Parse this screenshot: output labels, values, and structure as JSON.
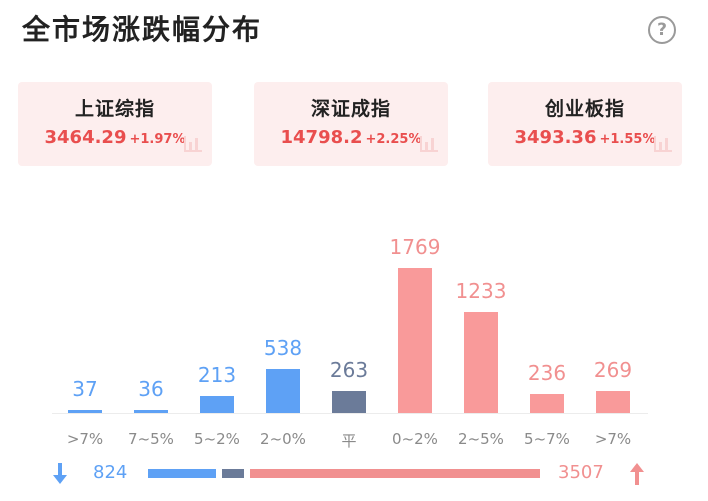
{
  "title": "全市场涨跌幅分布",
  "help_icon": "?",
  "indices": [
    {
      "name": "上证综指",
      "price": "3464.29",
      "change": "+1.97%"
    },
    {
      "name": "深证成指",
      "price": "14798.2",
      "change": "+2.25%"
    },
    {
      "name": "创业板指",
      "price": "3493.36",
      "change": "+1.55%"
    }
  ],
  "chart_data": {
    "type": "bar",
    "categories": [
      ">7%",
      "7~5%",
      "5~2%",
      "2~0%",
      "平",
      "0~2%",
      "2~5%",
      "5~7%",
      ">7%"
    ],
    "values": [
      37,
      36,
      213,
      538,
      263,
      1769,
      1233,
      236,
      269
    ],
    "label_colors": [
      "#5ea1f5",
      "#5ea1f5",
      "#5ea1f5",
      "#5ea1f5",
      "#6b7b99",
      "#f19090",
      "#f19090",
      "#f19090",
      "#f19090"
    ],
    "bar_colors": [
      "#5ea1f5",
      "#5ea1f5",
      "#5ea1f5",
      "#5ea1f5",
      "#6b7b99",
      "#f99a9a",
      "#f99a9a",
      "#f99a9a",
      "#f99a9a"
    ]
  },
  "summary": {
    "down_count": "824",
    "flat_count": 263,
    "up_count": "3507",
    "down_color": "#5ea1f5",
    "flat_color": "#6b7b99",
    "up_color": "#f19090"
  }
}
